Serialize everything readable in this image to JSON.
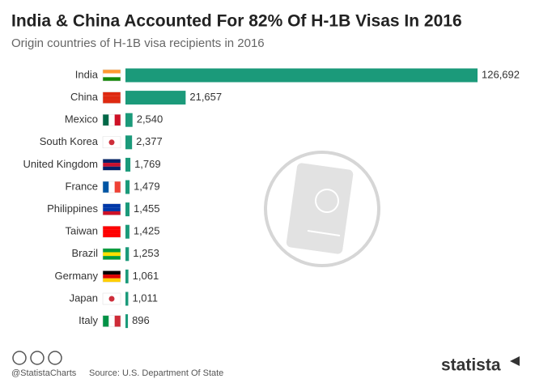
{
  "chart_data": {
    "type": "bar",
    "orientation": "horizontal",
    "title": "India & China Accounted For 82% Of H-1B Visas In 2016",
    "subtitle": "Origin countries of H-1B visa recipients in 2016",
    "categories": [
      "India",
      "China",
      "Mexico",
      "South Korea",
      "United Kingdom",
      "France",
      "Philippines",
      "Taiwan",
      "Brazil",
      "Germany",
      "Japan",
      "Italy"
    ],
    "values": [
      126692,
      21657,
      2540,
      2377,
      1769,
      1479,
      1455,
      1425,
      1253,
      1061,
      1011,
      896
    ],
    "value_labels": [
      "126,692",
      "21,657",
      "2,540",
      "2,377",
      "1,769",
      "1,479",
      "1,455",
      "1,425",
      "1,253",
      "1,061",
      "1,011",
      "896"
    ],
    "color": "#1b9a7a"
  },
  "footer": {
    "handle": "@StatistaCharts",
    "source": "Source: U.S. Department Of State",
    "logo": "statista"
  }
}
